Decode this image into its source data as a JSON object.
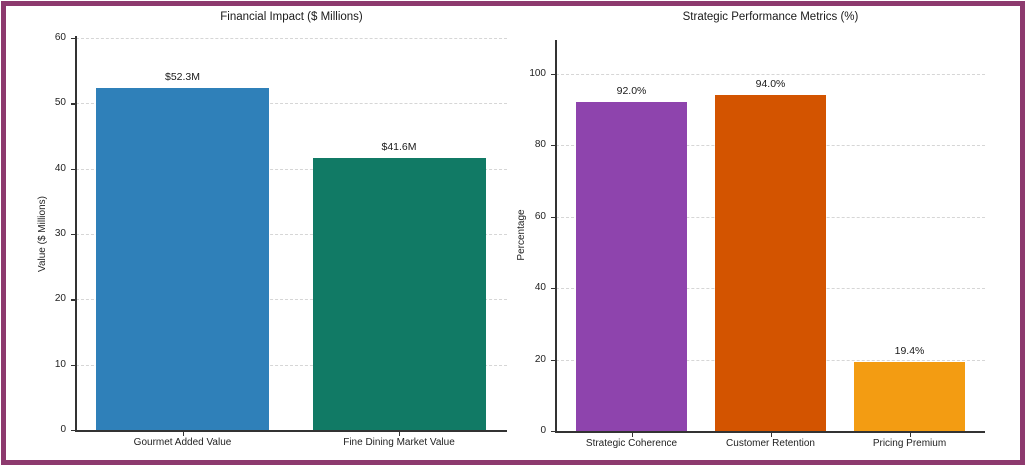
{
  "frame": {
    "border_color": "#8d3a6e",
    "background_color": "#ffffff"
  },
  "chart_data": [
    {
      "type": "bar",
      "title": "Financial Impact ($ Millions)",
      "xlabel": "",
      "ylabel": "Value ($ Millions)",
      "categories": [
        "Gourmet Added Value",
        "Fine Dining Market Value"
      ],
      "values": [
        52.3,
        41.6
      ],
      "value_labels": [
        "$52.3M",
        "$41.6M"
      ],
      "bar_colors": [
        "#2f80b9",
        "#117a65"
      ],
      "yticks": [
        0,
        10,
        20,
        30,
        40,
        50,
        60
      ],
      "ylim": [
        0,
        60
      ],
      "grid": true,
      "legend": "none"
    },
    {
      "type": "bar",
      "title": "Strategic Performance Metrics (%)",
      "xlabel": "",
      "ylabel": "Percentage",
      "categories": [
        "Strategic Coherence",
        "Customer Retention",
        "Pricing Premium"
      ],
      "values": [
        92.0,
        94.0,
        19.4
      ],
      "value_labels": [
        "92.0%",
        "94.0%",
        "19.4%"
      ],
      "bar_colors": [
        "#8e44ad",
        "#d35400",
        "#f39c12"
      ],
      "yticks": [
        0,
        20,
        40,
        60,
        80,
        100
      ],
      "ylim": [
        0,
        110
      ],
      "grid": true,
      "legend": "none"
    }
  ]
}
